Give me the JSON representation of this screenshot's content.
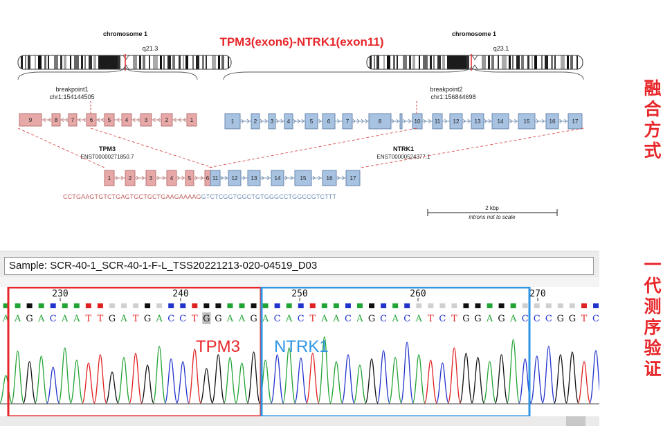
{
  "diagram": {
    "title": "TPM3(exon6)-NTRK1(exon11)",
    "left_chrom": {
      "name": "chromosome 1",
      "band": "q21.3"
    },
    "right_chrom": {
      "name": "chromosome 1",
      "band": "q23.1"
    },
    "breakpoint1": {
      "label": "breakpoint1",
      "pos": "chr1:154144505"
    },
    "breakpoint2": {
      "label": "breakpoint2",
      "pos": "chr1:156844698"
    },
    "tpm3": {
      "name": "TPM3",
      "transcript": "ENST00000271850.7",
      "exons": [
        "9",
        "8",
        "7",
        "6",
        "5",
        "4",
        "3",
        "2",
        "1"
      ]
    },
    "ntrk1": {
      "name": "NTRK1",
      "transcript": "ENST00000524377.1",
      "exons": [
        "1",
        "2",
        "3",
        "4",
        "5",
        "6",
        "7",
        "8",
        "9",
        "10",
        "11",
        "12",
        "13",
        "14",
        "15",
        "16",
        "17"
      ]
    },
    "fusion_exons_tpm3": [
      "1",
      "2",
      "3",
      "4",
      "5",
      "6"
    ],
    "fusion_exons_ntrk1": [
      "11",
      "12",
      "13",
      "14",
      "15",
      "16",
      "17"
    ],
    "junction_seq_left": "CCTGAAGTGTCTGAGTGCTGCTGAAGAAAAG",
    "junction_seq_right": "GTCTCGGTGGCTGTGGGCCTGGCCGTCTTT",
    "scale_label": "2 kbp",
    "scale_note": "introns not to scale",
    "colors": {
      "title": "#e8262a",
      "tpm3_fill": "#e7a8a8",
      "tpm3_stroke": "#b46a6a",
      "ntrk1_fill": "#a8c2e1",
      "ntrk1_stroke": "#5f7ea6",
      "seq_left": "#c46060",
      "seq_right": "#6f8fb8"
    }
  },
  "side_labels": {
    "top": [
      "融",
      "合",
      "方",
      "式"
    ],
    "bottom": [
      "一",
      "代",
      "测",
      "序",
      "验",
      "证"
    ]
  },
  "trace": {
    "sample": "Sample: SCR-40-1_SCR-40-1-F-L_TSS20221213-020-04519_D03",
    "positions": [
      "230",
      "240",
      "250",
      "260",
      "270"
    ],
    "sequence": "AAGACAATTGATGACCTGGAAGACACTAACAGCACATCTGGAGACCCGGTC",
    "tpm3_label": "TPM3",
    "ntrk1_label": "NTRK1",
    "colors": {
      "A": "#22a335",
      "C": "#2233cc",
      "G": "#111111",
      "T": "#e02020",
      "tpm3_box": "#e8262a",
      "ntrk1_box": "#2f96e6"
    }
  }
}
